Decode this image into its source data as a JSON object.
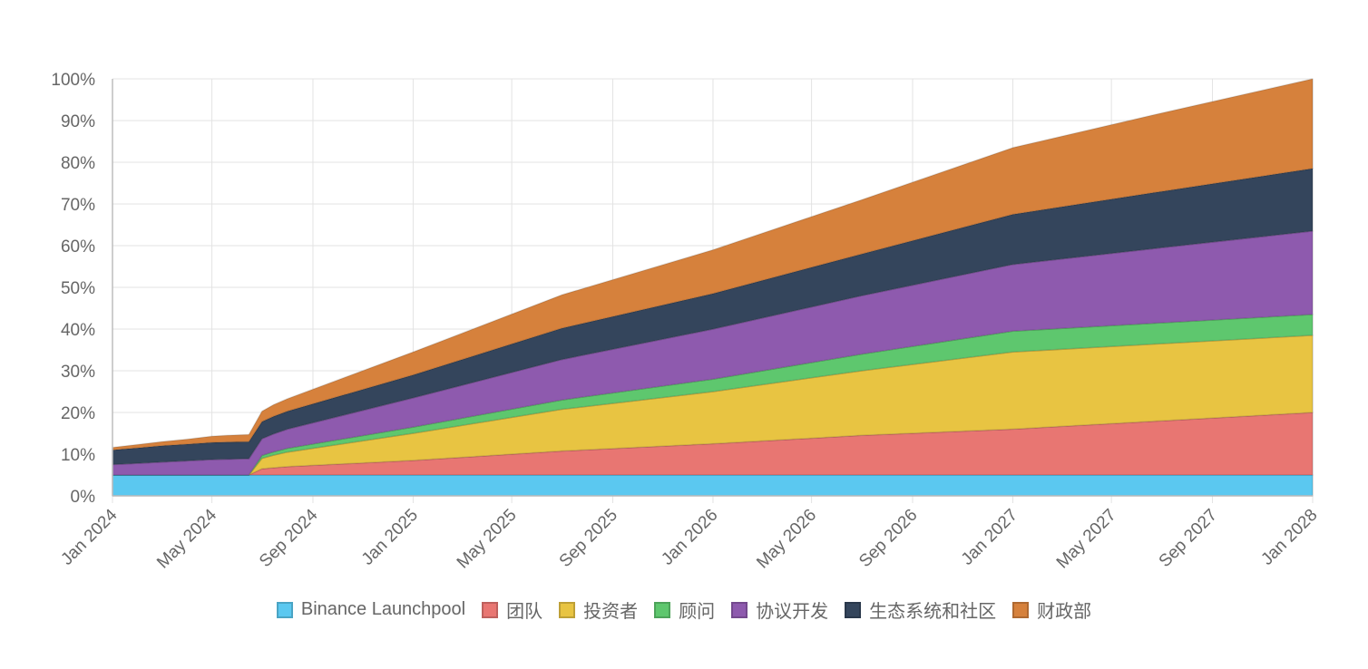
{
  "chart_data": {
    "type": "area",
    "stacked": true,
    "x": [
      "2024-01-01",
      "2024-02-01",
      "2024-03-01",
      "2024-04-01",
      "2024-05-01",
      "2024-05-20",
      "2024-06-15",
      "2024-07-01",
      "2024-07-15",
      "2024-08-01",
      "2025-01-01",
      "2025-07-01",
      "2026-01-01",
      "2026-07-01",
      "2027-01-01",
      "2027-07-01",
      "2028-01-01"
    ],
    "x_tick_labels": [
      "Jan 2024",
      "May 2024",
      "Sep 2024",
      "Jan 2025",
      "May 2025",
      "Sep 2025",
      "Jan 2026",
      "May 2026",
      "Sep 2026",
      "Jan 2027",
      "May 2027",
      "Sep 2027",
      "Jan 2028"
    ],
    "xlim": [
      "2024-01-01",
      "2028-01-01"
    ],
    "y_tick_labels": [
      "0%",
      "10%",
      "20%",
      "30%",
      "40%",
      "50%",
      "60%",
      "70%",
      "80%",
      "90%",
      "100%"
    ],
    "ylim": [
      0,
      100
    ],
    "y_unit": "%",
    "grid": true,
    "legend_position": "bottom",
    "series": [
      {
        "name": "Binance Launchpool",
        "color": "#5bc8f0",
        "values": [
          5,
          5,
          5,
          5,
          5,
          5,
          5,
          5,
          5,
          5,
          5,
          5,
          5,
          5,
          5,
          5,
          5
        ]
      },
      {
        "name": "团队",
        "color": "#e87672",
        "values": [
          0,
          0,
          0,
          0,
          0,
          0,
          0,
          1.5,
          1.75,
          2,
          3.5,
          5.75,
          7.5,
          9.5,
          11,
          13,
          15
        ]
      },
      {
        "name": "投资者",
        "color": "#e8c442",
        "values": [
          0,
          0,
          0,
          0,
          0,
          0,
          0,
          2.5,
          3,
          3.5,
          6.5,
          10,
          12.5,
          15.5,
          18.5,
          18.5,
          18.5
        ]
      },
      {
        "name": "顾问",
        "color": "#5ec76e",
        "values": [
          0,
          0,
          0,
          0,
          0,
          0,
          0,
          0.7,
          0.8,
          0.9,
          1.5,
          2.25,
          3,
          4,
          5,
          5,
          5
        ]
      },
      {
        "name": "协议开发",
        "color": "#8e5aae",
        "values": [
          2.5,
          2.8,
          3.1,
          3.4,
          3.7,
          3.8,
          3.9,
          4,
          4.3,
          4.6,
          7,
          9.7,
          12,
          14,
          16,
          18,
          20
        ]
      },
      {
        "name": "生态系统和社区",
        "color": "#34455c",
        "values": [
          3.5,
          3.7,
          3.9,
          4,
          4.1,
          4.1,
          4.1,
          4.1,
          4.2,
          4.3,
          5.5,
          7.5,
          8.5,
          10,
          12,
          13.5,
          15
        ]
      },
      {
        "name": "财政部",
        "color": "#d6813c",
        "values": [
          0.6,
          0.8,
          1,
          1.2,
          1.5,
          1.6,
          1.7,
          2.5,
          2.8,
          3,
          5.5,
          8,
          10.5,
          13,
          16,
          18.8,
          21.5
        ]
      }
    ]
  }
}
